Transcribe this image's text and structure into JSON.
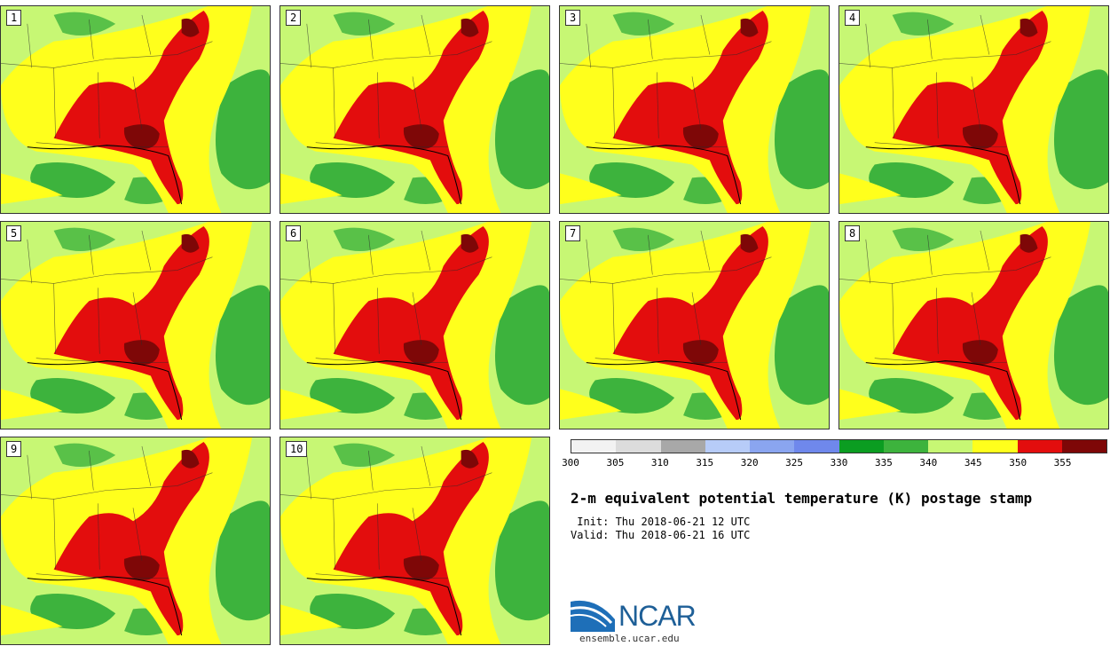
{
  "stamps": [
    {
      "label": "1"
    },
    {
      "label": "2"
    },
    {
      "label": "3"
    },
    {
      "label": "4"
    },
    {
      "label": "5"
    },
    {
      "label": "6"
    },
    {
      "label": "7"
    },
    {
      "label": "8"
    },
    {
      "label": "9"
    },
    {
      "label": "10"
    }
  ],
  "colorbar": {
    "colors": [
      "#f2f2f2",
      "#dcdcdc",
      "#a8a8a8",
      "#b7ccf8",
      "#8aa5f0",
      "#6f88ec",
      "#0b9d21",
      "#3db33d",
      "#c7f774",
      "#ffff1c",
      "#e30d0d",
      "#7e0707"
    ],
    "ticks": [
      "300",
      "305",
      "310",
      "315",
      "320",
      "325",
      "330",
      "335",
      "340",
      "345",
      "350",
      "355"
    ]
  },
  "title": "2-m equivalent potential temperature (K) postage stamp",
  "init": " Init: Thu 2018-06-21 12 UTC",
  "valid": "Valid: Thu 2018-06-21 16 UTC",
  "logo": {
    "text": "NCAR",
    "site": "ensemble.ucar.edu"
  }
}
